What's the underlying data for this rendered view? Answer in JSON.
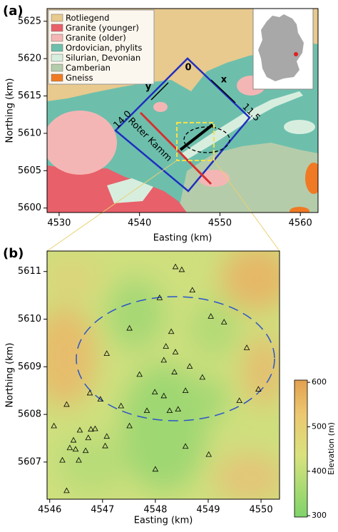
{
  "chart_data": [
    {
      "type": "map",
      "panel_label": "(a)",
      "xlabel": "Easting (km)",
      "ylabel": "Northing (km)",
      "xlim": [
        4528.5,
        4562.2
      ],
      "ylim": [
        5599.4,
        5626.7
      ],
      "xticks": [
        4530,
        4540,
        4550,
        4560
      ],
      "yticks": [
        5600,
        5605,
        5610,
        5615,
        5620,
        5625
      ],
      "legend": [
        {
          "name": "Rotliegend",
          "color": "#e8c98e"
        },
        {
          "name": "Granite (younger)",
          "color": "#e8606a"
        },
        {
          "name": "Granite (older)",
          "color": "#f4b6b4"
        },
        {
          "name": "Ordovician, phylits",
          "color": "#6dbfac"
        },
        {
          "name": "Silurian, Devonian",
          "color": "#d7eedf"
        },
        {
          "name": "Camberian",
          "color": "#b5ccaa"
        },
        {
          "name": "Gneiss",
          "color": "#f07a24"
        }
      ],
      "annotations": [
        "0",
        "11.5",
        "14.0",
        "x",
        "y",
        "Roter Kamm"
      ]
    },
    {
      "type": "scatter",
      "panel_label": "(b)",
      "xlabel": "Easting (km)",
      "ylabel": "Northing (km)",
      "xlim": [
        4545.95,
        4550.35
      ],
      "ylim": [
        5606.22,
        5611.43
      ],
      "xticks": [
        4546,
        4547,
        4548,
        4549,
        4550
      ],
      "yticks": [
        5607,
        5608,
        5609,
        5610,
        5611
      ],
      "marker_color": "#000000",
      "x": [
        4548.38,
        4548.5,
        4548.7,
        4548.08,
        4547.51,
        4548.3,
        4549.05,
        4549.3,
        4548.2,
        4549.73,
        4547.08,
        4548.38,
        4548.16,
        4548.65,
        4548.36,
        4547.7,
        4548.89,
        4549.95,
        4546.76,
        4547.99,
        4548.16,
        4548.57,
        4546.96,
        4546.32,
        4547.35,
        4547.84,
        4548.27,
        4548.43,
        4547.51,
        4546.57,
        4546.73,
        4546.78,
        4546.86,
        4547.08,
        4546.08,
        4546.45,
        4547.05,
        4546.38,
        4546.49,
        4546.24,
        4546.55,
        4546.68,
        4548.57,
        4549.01,
        4548.0,
        4546.32,
        4549.59
      ],
      "y": [
        5611.1,
        5611.04,
        5610.61,
        5610.45,
        5609.81,
        5609.74,
        5610.06,
        5609.94,
        5609.43,
        5609.4,
        5609.28,
        5609.31,
        5609.14,
        5609.01,
        5608.89,
        5608.84,
        5608.78,
        5608.53,
        5608.45,
        5608.47,
        5608.39,
        5608.5,
        5608.32,
        5608.21,
        5608.18,
        5608.08,
        5608.08,
        5608.11,
        5607.76,
        5607.67,
        5607.51,
        5607.69,
        5607.7,
        5607.54,
        5607.76,
        5607.46,
        5607.34,
        5607.3,
        5607.27,
        5607.04,
        5607.04,
        5607.24,
        5607.33,
        5607.16,
        5606.85,
        5606.4,
        5608.29
      ],
      "colorbar": {
        "label": "Elevation (m)",
        "lim": [
          297,
          605
        ],
        "ticks": [
          300,
          400,
          500,
          600
        ]
      }
    }
  ]
}
